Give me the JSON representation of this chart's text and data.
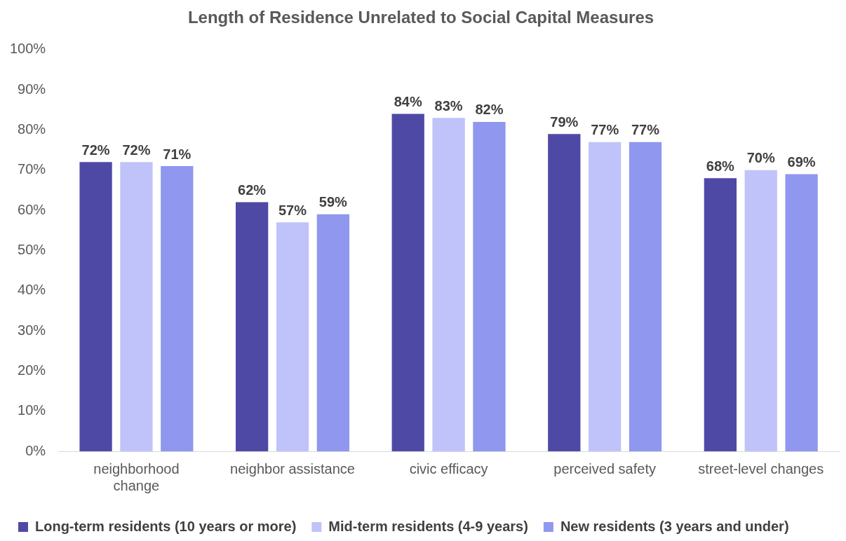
{
  "chart_data": {
    "type": "bar",
    "title": "Length of Residence Unrelated to Social Capital Measures",
    "categories": [
      "neighborhood change",
      "neighbor assistance",
      "civic efficacy",
      "perceived safety",
      "street-level changes"
    ],
    "series": [
      {
        "name": "Long-term residents (10 years or more)",
        "color": "#4f49a6",
        "values": [
          72,
          62,
          84,
          79,
          68
        ],
        "value_labels": [
          "72%",
          "62%",
          "84%",
          "79%",
          "68%"
        ]
      },
      {
        "name": "Mid-term residents (4-9 years)",
        "color": "#c0c3fa",
        "values": [
          72,
          57,
          83,
          77,
          70
        ],
        "value_labels": [
          "72%",
          "57%",
          "83%",
          "77%",
          "70%"
        ]
      },
      {
        "name": "New residents (3 years and under)",
        "color": "#8f97ee",
        "values": [
          71,
          59,
          82,
          77,
          69
        ],
        "value_labels": [
          "71%",
          "59%",
          "82%",
          "77%",
          "69%"
        ]
      }
    ],
    "ylim": [
      0,
      100
    ],
    "yticks": [
      {
        "value": 0,
        "label": "0%"
      },
      {
        "value": 10,
        "label": "10%"
      },
      {
        "value": 20,
        "label": "20%"
      },
      {
        "value": 30,
        "label": "30%"
      },
      {
        "value": 40,
        "label": "40%"
      },
      {
        "value": 50,
        "label": "50%"
      },
      {
        "value": 60,
        "label": "60%"
      },
      {
        "value": 70,
        "label": "70%"
      },
      {
        "value": 80,
        "label": "80%"
      },
      {
        "value": 90,
        "label": "90%"
      },
      {
        "value": 100,
        "label": "100%"
      }
    ],
    "grid": false,
    "legend": "bottom"
  }
}
